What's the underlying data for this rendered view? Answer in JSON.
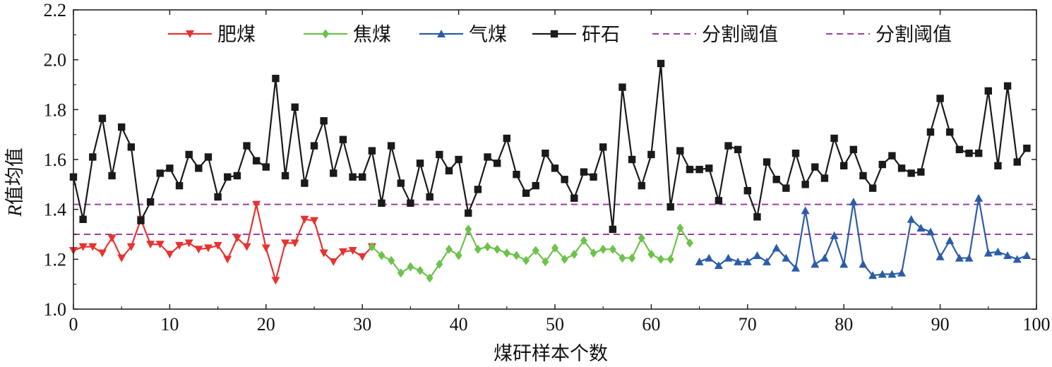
{
  "chart_data": {
    "type": "line",
    "xlabel": "煤矸样本个数",
    "ylabel_italic": "R",
    "ylabel_rest": "值均值",
    "xlim": [
      0,
      100
    ],
    "ylim": [
      1.0,
      2.2
    ],
    "xticks": [
      0,
      10,
      20,
      30,
      40,
      50,
      60,
      70,
      80,
      90,
      100
    ],
    "yticks": [
      1.0,
      1.2,
      1.4,
      1.6,
      1.8,
      2.0,
      2.2
    ],
    "tick_labels_y": [
      "1.0",
      "1.2",
      "1.4",
      "1.6",
      "1.8",
      "2.0",
      "2.2"
    ],
    "tick_labels_x": [
      "0",
      "10",
      "20",
      "30",
      "40",
      "50",
      "60",
      "70",
      "80",
      "90",
      "100"
    ],
    "legend_position": "top",
    "series": [
      {
        "name": "肥煤",
        "color": "#e8322f",
        "marker": "triangle-down",
        "x_start": 0,
        "values": [
          1.235,
          1.25,
          1.25,
          1.225,
          1.285,
          1.205,
          1.25,
          1.36,
          1.26,
          1.26,
          1.22,
          1.255,
          1.265,
          1.24,
          1.245,
          1.255,
          1.2,
          1.285,
          1.25,
          1.42,
          1.245,
          1.115,
          1.265,
          1.265,
          1.36,
          1.355,
          1.225,
          1.19,
          1.23,
          1.235,
          1.21,
          1.25
        ]
      },
      {
        "name": "焦煤",
        "color": "#6cc24a",
        "marker": "diamond",
        "x_start": 31,
        "values": [
          1.25,
          1.215,
          1.195,
          1.145,
          1.17,
          1.155,
          1.125,
          1.18,
          1.24,
          1.215,
          1.32,
          1.24,
          1.25,
          1.24,
          1.225,
          1.215,
          1.195,
          1.235,
          1.19,
          1.245,
          1.2,
          1.22,
          1.275,
          1.225,
          1.24,
          1.24,
          1.205,
          1.205,
          1.285,
          1.22,
          1.2,
          1.2,
          1.325,
          1.265
        ]
      },
      {
        "name": "气煤",
        "color": "#2b5ca8",
        "marker": "triangle-up",
        "x_start": 65,
        "values": [
          1.19,
          1.205,
          1.175,
          1.205,
          1.19,
          1.19,
          1.215,
          1.19,
          1.245,
          1.205,
          1.165,
          1.395,
          1.18,
          1.205,
          1.295,
          1.18,
          1.43,
          1.18,
          1.135,
          1.14,
          1.14,
          1.145,
          1.36,
          1.325,
          1.31,
          1.21,
          1.275,
          1.205,
          1.205,
          1.445,
          1.225,
          1.23,
          1.215,
          1.2,
          1.215
        ]
      },
      {
        "name": "矸石",
        "color": "#1a1a1a",
        "marker": "square",
        "x_start": 0,
        "values": [
          1.53,
          1.36,
          1.61,
          1.765,
          1.535,
          1.73,
          1.65,
          1.355,
          1.43,
          1.545,
          1.565,
          1.495,
          1.62,
          1.565,
          1.61,
          1.45,
          1.53,
          1.535,
          1.655,
          1.595,
          1.57,
          1.925,
          1.535,
          1.81,
          1.505,
          1.655,
          1.755,
          1.545,
          1.68,
          1.53,
          1.53,
          1.635,
          1.425,
          1.655,
          1.505,
          1.425,
          1.585,
          1.45,
          1.62,
          1.555,
          1.6,
          1.385,
          1.48,
          1.61,
          1.585,
          1.685,
          1.54,
          1.465,
          1.495,
          1.625,
          1.565,
          1.52,
          1.445,
          1.55,
          1.53,
          1.65,
          1.32,
          1.89,
          1.6,
          1.495,
          1.62,
          1.985,
          1.41,
          1.635,
          1.56,
          1.56,
          1.565,
          1.435,
          1.655,
          1.64,
          1.475,
          1.37,
          1.59,
          1.52,
          1.485,
          1.625,
          1.5,
          1.57,
          1.525,
          1.685,
          1.575,
          1.64,
          1.535,
          1.485,
          1.58,
          1.615,
          1.565,
          1.545,
          1.55,
          1.71,
          1.845,
          1.71,
          1.64,
          1.625,
          1.625,
          1.875,
          1.575,
          1.895,
          1.59,
          1.645
        ]
      }
    ],
    "thresholds": [
      {
        "name": "分割阈值",
        "value": 1.42,
        "color": "#9b3fa3",
        "style": "dashed"
      },
      {
        "name": "分割阈值",
        "value": 1.3,
        "color": "#9b3fa3",
        "style": "dashed"
      }
    ]
  }
}
